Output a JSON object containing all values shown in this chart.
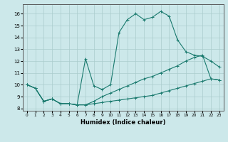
{
  "xlabel": "Humidex (Indice chaleur)",
  "background_color": "#cce8ea",
  "grid_color": "#aacccc",
  "line_color": "#1a7a6e",
  "xlim": [
    -0.5,
    23.5
  ],
  "ylim": [
    7.8,
    16.8
  ],
  "xticks": [
    0,
    1,
    2,
    3,
    4,
    5,
    6,
    7,
    8,
    9,
    10,
    11,
    12,
    13,
    14,
    15,
    16,
    17,
    18,
    19,
    20,
    21,
    22,
    23
  ],
  "yticks": [
    8,
    9,
    10,
    11,
    12,
    13,
    14,
    15,
    16
  ],
  "line1_x": [
    0,
    1,
    2,
    3,
    4,
    5,
    6,
    7,
    8,
    9,
    10,
    11,
    12,
    13,
    14,
    15,
    16,
    17,
    18,
    19,
    20,
    21,
    22,
    23
  ],
  "line1_y": [
    10.0,
    9.7,
    8.6,
    8.8,
    8.4,
    8.4,
    8.3,
    12.2,
    9.9,
    9.6,
    10.0,
    14.4,
    15.5,
    16.0,
    15.5,
    15.7,
    16.2,
    15.8,
    13.8,
    12.8,
    12.5,
    12.4,
    12.0,
    11.5
  ],
  "line2_x": [
    0,
    1,
    2,
    3,
    4,
    5,
    6,
    7,
    8,
    9,
    10,
    11,
    12,
    13,
    14,
    15,
    16,
    17,
    18,
    19,
    20,
    21,
    22,
    23
  ],
  "line2_y": [
    10.0,
    9.7,
    8.6,
    8.8,
    8.4,
    8.4,
    8.3,
    8.3,
    8.6,
    9.0,
    9.3,
    9.6,
    9.9,
    10.2,
    10.5,
    10.7,
    11.0,
    11.3,
    11.6,
    12.0,
    12.3,
    12.5,
    10.5,
    10.4
  ],
  "line3_x": [
    0,
    1,
    2,
    3,
    4,
    5,
    6,
    7,
    8,
    9,
    10,
    11,
    12,
    13,
    14,
    15,
    16,
    17,
    18,
    19,
    20,
    21,
    22,
    23
  ],
  "line3_y": [
    10.0,
    9.7,
    8.6,
    8.8,
    8.4,
    8.4,
    8.3,
    8.3,
    8.4,
    8.5,
    8.6,
    8.7,
    8.8,
    8.9,
    9.0,
    9.1,
    9.3,
    9.5,
    9.7,
    9.9,
    10.1,
    10.3,
    10.5,
    10.4
  ]
}
